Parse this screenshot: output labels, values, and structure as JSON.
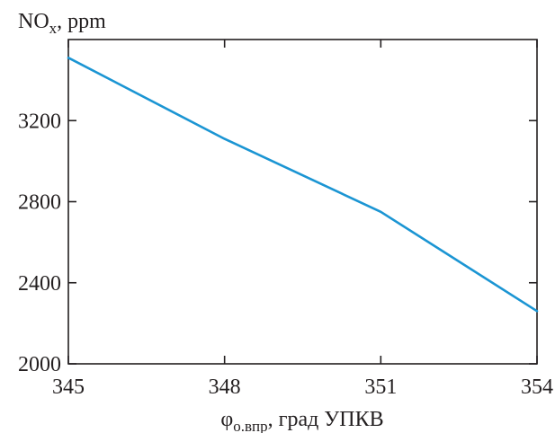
{
  "chart_data": {
    "type": "line",
    "ylabel": {
      "main": "NO",
      "sub": "x",
      "rest": ", ppm"
    },
    "xlabel": {
      "main": "φ",
      "sub": "о.впр",
      "rest": ", град УПКВ"
    },
    "x": [
      345,
      348,
      351,
      354
    ],
    "xlim": [
      345,
      354
    ],
    "ylim": [
      2000,
      3600
    ],
    "xticks": [
      345,
      348,
      351,
      354
    ],
    "yticks": [
      2000,
      2400,
      2800,
      3200
    ],
    "series": [
      {
        "values": [
          3510,
          3110,
          2750,
          2260
        ],
        "color": "#1b95d3"
      }
    ],
    "grid": false
  }
}
